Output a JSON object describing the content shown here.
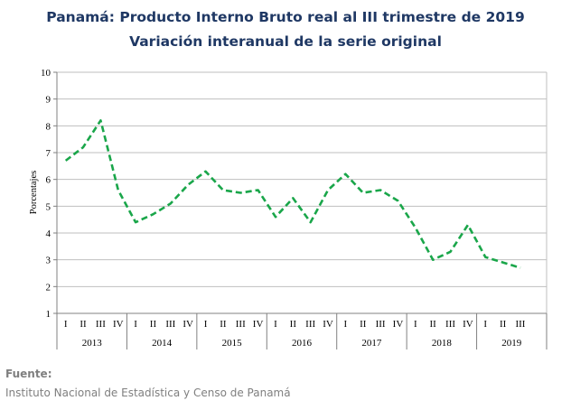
{
  "chart_data": {
    "type": "line",
    "title": "Panamá: Producto Interno Bruto real al III trimestre de 2019",
    "subtitle": "Variación interanual de la serie original",
    "ylabel": "Porcentajes",
    "ylim": [
      1,
      10
    ],
    "yticks": [
      1,
      2,
      3,
      4,
      5,
      6,
      7,
      8,
      9,
      10
    ],
    "grid": true,
    "line_style": "dashed",
    "color": "#1aa64a",
    "quarter_labels": [
      "I",
      "II",
      "III",
      "IV"
    ],
    "years": [
      {
        "label": "2013",
        "quarters": 4
      },
      {
        "label": "2014",
        "quarters": 4
      },
      {
        "label": "2015",
        "quarters": 4
      },
      {
        "label": "2016",
        "quarters": 4
      },
      {
        "label": "2017",
        "quarters": 4
      },
      {
        "label": "2018",
        "quarters": 4
      },
      {
        "label": "2019",
        "quarters": 3
      }
    ],
    "values": [
      6.7,
      7.2,
      8.2,
      5.6,
      4.4,
      4.7,
      5.1,
      5.8,
      6.3,
      5.6,
      5.5,
      5.6,
      4.6,
      5.3,
      4.4,
      5.6,
      6.2,
      5.5,
      5.6,
      5.2,
      4.2,
      3.0,
      3.3,
      4.3,
      3.1,
      2.9,
      2.7
    ]
  },
  "footer": {
    "label": "Fuente:",
    "source": "Instituto Nacional de Estadística y Censo de Panamá"
  }
}
